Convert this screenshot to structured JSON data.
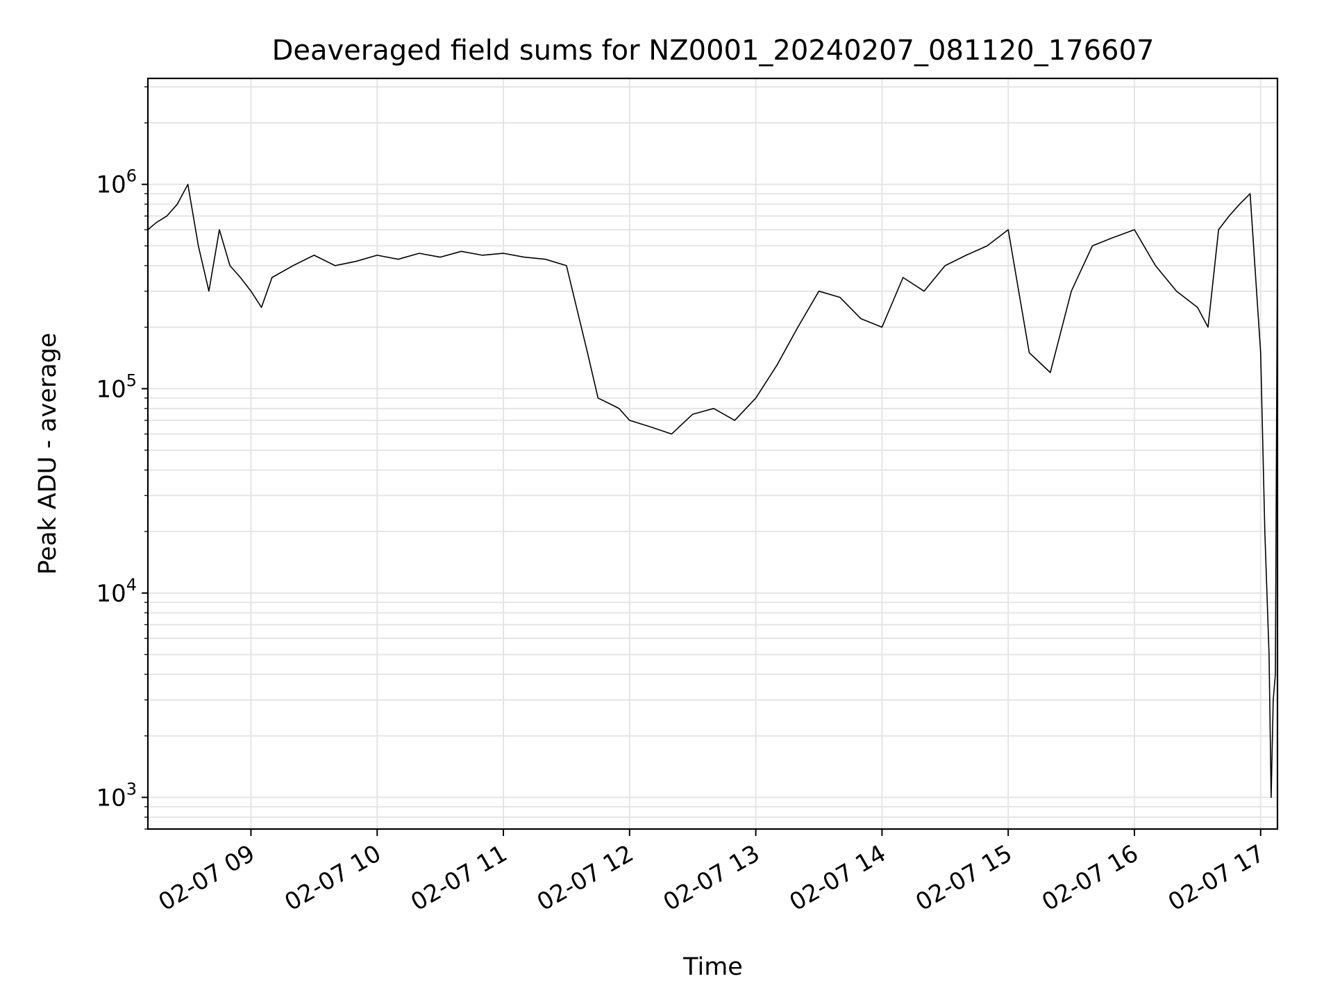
{
  "chart_data": {
    "type": "line",
    "title": "Deaveraged field sums for NZ0001_20240207_081120_176607",
    "xlabel": "Time",
    "ylabel": "Peak ADU - average",
    "yscale": "log",
    "ylim": [
      700,
      3300000
    ],
    "xlim": [
      "2024-02-07 08:11",
      "2024-02-07 17:08"
    ],
    "grid": true,
    "line_color": "#000000",
    "grid_color": "#e5e5e5",
    "x_ticks": [
      "02-07 09",
      "02-07 10",
      "02-07 11",
      "02-07 12",
      "02-07 13",
      "02-07 14",
      "02-07 15",
      "02-07 16",
      "02-07 17"
    ],
    "y_ticks": [
      {
        "base": "10",
        "exp": "3",
        "value": 1000
      },
      {
        "base": "10",
        "exp": "4",
        "value": 10000
      },
      {
        "base": "10",
        "exp": "5",
        "value": 100000
      },
      {
        "base": "10",
        "exp": "6",
        "value": 1000000
      }
    ],
    "series": [
      {
        "x": [
          "08:11",
          "08:15",
          "08:20",
          "08:25",
          "08:30",
          "08:35",
          "08:40",
          "08:45",
          "08:50",
          "08:55",
          "09:00",
          "09:05",
          "09:10",
          "09:20",
          "09:30",
          "09:40",
          "09:50",
          "10:00",
          "10:10",
          "10:20",
          "10:30",
          "10:40",
          "10:50",
          "11:00",
          "11:10",
          "11:20",
          "11:30",
          "11:40",
          "11:45",
          "11:50",
          "11:55",
          "12:00",
          "12:10",
          "12:20",
          "12:30",
          "12:40",
          "12:50",
          "13:00",
          "13:10",
          "13:20",
          "13:30",
          "13:40",
          "13:50",
          "14:00",
          "14:10",
          "14:20",
          "14:30",
          "14:40",
          "14:50",
          "15:00",
          "15:05",
          "15:10",
          "15:20",
          "15:30",
          "15:40",
          "15:50",
          "16:00",
          "16:10",
          "16:20",
          "16:30",
          "16:35",
          "16:40",
          "16:45",
          "16:50",
          "16:55",
          "17:00",
          "17:02",
          "17:04",
          "17:05",
          "17:06",
          "17:07",
          "17:08"
        ],
        "y": [
          600000,
          650000,
          700000,
          800000,
          1000000,
          500000,
          300000,
          600000,
          400000,
          350000,
          300000,
          250000,
          350000,
          400000,
          450000,
          400000,
          420000,
          450000,
          430000,
          460000,
          440000,
          470000,
          450000,
          460000,
          440000,
          430000,
          400000,
          150000,
          90000,
          85000,
          80000,
          70000,
          65000,
          60000,
          75000,
          80000,
          70000,
          90000,
          130000,
          200000,
          300000,
          280000,
          220000,
          200000,
          350000,
          300000,
          400000,
          450000,
          500000,
          600000,
          300000,
          150000,
          120000,
          300000,
          500000,
          550000,
          600000,
          400000,
          300000,
          250000,
          200000,
          600000,
          700000,
          800000,
          900000,
          150000,
          20000,
          5000,
          1000,
          3000,
          4000,
          550000
        ]
      }
    ]
  }
}
